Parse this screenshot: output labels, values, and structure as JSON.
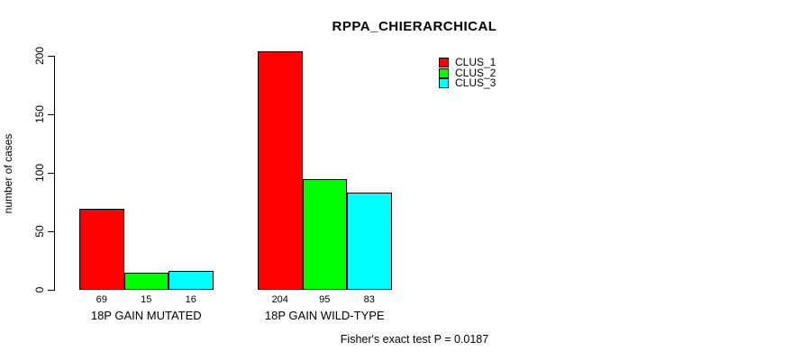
{
  "chart_data": {
    "type": "bar",
    "title": "RPPA_CHIERARCHICAL",
    "xlabel": "",
    "ylabel": "number of cases",
    "categories": [
      "18P GAIN MUTATED",
      "18P GAIN WILD-TYPE"
    ],
    "series": [
      {
        "name": "CLUS_1",
        "color": "#ff0000",
        "values": [
          69,
          204
        ]
      },
      {
        "name": "CLUS_2",
        "color": "#00ff00",
        "values": [
          15,
          95
        ]
      },
      {
        "name": "CLUS_3",
        "color": "#00ffff",
        "values": [
          16,
          83
        ]
      }
    ],
    "bar_value_labels": [
      [
        69,
        15,
        16
      ],
      [
        204,
        95,
        83
      ]
    ],
    "yticks": [
      0,
      50,
      100,
      150,
      200
    ],
    "ylim": [
      0,
      200
    ],
    "grid": false,
    "legend_position": "top-right",
    "annotation": "Fisher's exact test P = 0.0187",
    "axis_color": "#000000",
    "background_color": "#ffffff"
  }
}
